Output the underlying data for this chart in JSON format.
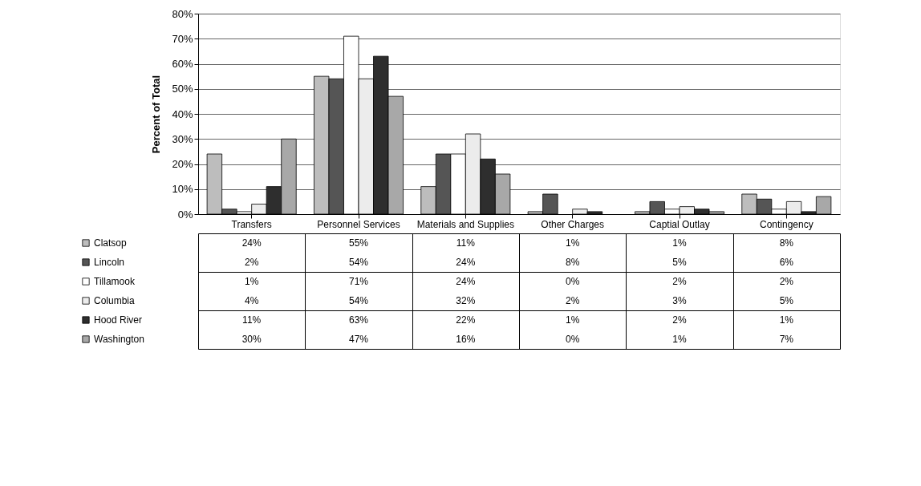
{
  "chart_data": {
    "type": "bar",
    "ylabel": "Percent of Total",
    "categories": [
      "Transfers",
      "Personnel Services",
      "Materials and Supplies",
      "Other Charges",
      "Captial Outlay",
      "Contingency"
    ],
    "series": [
      {
        "name": "Clatsop",
        "color": "#bdbdbd",
        "values": [
          24,
          55,
          11,
          1,
          1,
          8
        ],
        "value_labels": [
          "24%",
          "55%",
          "11%",
          "1%",
          "1%",
          "8%"
        ]
      },
      {
        "name": "Lincoln",
        "color": "#555555",
        "values": [
          2,
          54,
          24,
          8,
          5,
          6
        ],
        "value_labels": [
          "2%",
          "54%",
          "24%",
          "8%",
          "5%",
          "6%"
        ]
      },
      {
        "name": "Tillamook",
        "color": "#ffffff",
        "values": [
          1,
          71,
          24,
          0,
          2,
          2
        ],
        "value_labels": [
          "1%",
          "71%",
          "24%",
          "0%",
          "2%",
          "2%"
        ]
      },
      {
        "name": "Columbia",
        "color": "#ececec",
        "values": [
          4,
          54,
          32,
          2,
          3,
          5
        ],
        "value_labels": [
          "4%",
          "54%",
          "32%",
          "2%",
          "3%",
          "5%"
        ]
      },
      {
        "name": "Hood River",
        "color": "#2e2e2e",
        "values": [
          11,
          63,
          22,
          1,
          2,
          1
        ],
        "value_labels": [
          "11%",
          "63%",
          "22%",
          "1%",
          "2%",
          "1%"
        ]
      },
      {
        "name": "Washington",
        "color": "#a8a8a8",
        "values": [
          30,
          47,
          16,
          0,
          1,
          7
        ],
        "value_labels": [
          "30%",
          "47%",
          "16%",
          "0%",
          "1%",
          "7%"
        ]
      }
    ],
    "ylim": [
      0,
      80
    ],
    "yticks": [
      {
        "value": 0,
        "label": "0%"
      },
      {
        "value": 10,
        "label": "10%"
      },
      {
        "value": 20,
        "label": "20%"
      },
      {
        "value": 30,
        "label": "30%"
      },
      {
        "value": 40,
        "label": "40%"
      },
      {
        "value": 50,
        "label": "50%"
      },
      {
        "value": 60,
        "label": "60%"
      },
      {
        "value": 70,
        "label": "70%"
      },
      {
        "value": 80,
        "label": "80%"
      }
    ],
    "grid": "y",
    "legend": "bottom left"
  }
}
